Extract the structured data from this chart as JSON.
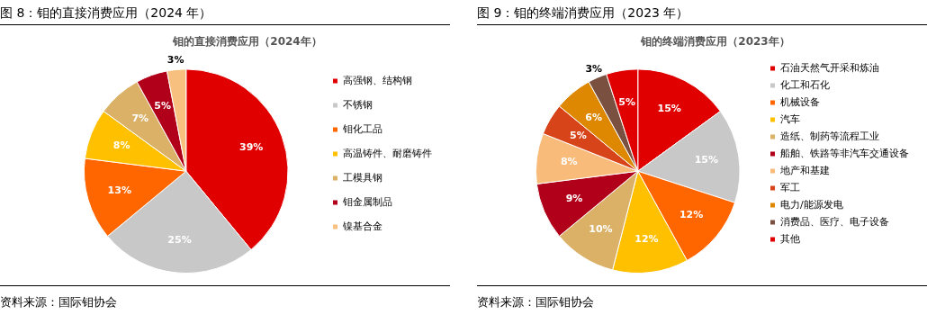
{
  "chart_data": [
    {
      "type": "pie",
      "title": "图 8：钼的直接消费应用（2024 年）",
      "subtitle": "钼的直接消费应用（2024年）",
      "categories": [
        "高强钢、结构钢",
        "不锈钢",
        "钼化工品",
        "高温铸件、耐磨铸件",
        "工模具钢",
        "钼金属制品",
        "镍基合金"
      ],
      "values": [
        39,
        25,
        13,
        8,
        7,
        5,
        3
      ],
      "value_labels": [
        "39%",
        "25%",
        "13%",
        "8%",
        "7%",
        "5%",
        "3%"
      ],
      "colors": [
        "#e00000",
        "#c8c8c8",
        "#ff6600",
        "#ffc000",
        "#dbb168",
        "#b0001a",
        "#f8c07f"
      ],
      "legend": "right",
      "annotations": [
        "资料来源：国际钼协会"
      ]
    },
    {
      "type": "pie",
      "title": "图 9：钼的终端消费应用（2023 年）",
      "subtitle": "钼的终端消费应用（2023年）",
      "categories": [
        "石油天然气开采和炼油",
        "化工和石化",
        "机械设备",
        "汽车",
        "造纸、制药等流程工业",
        "船舶、铁路等非汽车交通设备",
        "地产和基建",
        "军工",
        "电力/能源发电",
        "消费品、医疗、电子设备",
        "其他"
      ],
      "values": [
        15,
        15,
        12,
        12,
        10,
        9,
        8,
        5,
        6,
        3,
        5
      ],
      "value_labels": [
        "15%",
        "15%",
        "12%",
        "12%",
        "10%",
        "9%",
        "8%",
        "5%",
        "6%",
        "3%",
        "5%"
      ],
      "colors": [
        "#e00000",
        "#c8c8c8",
        "#ff6600",
        "#ffc000",
        "#dbb168",
        "#b0001a",
        "#f8bb7a",
        "#d8441a",
        "#dd8800",
        "#7a5040",
        "#e00000"
      ],
      "legend": "right",
      "annotations": [
        "资料来源：国际钼协会"
      ]
    }
  ]
}
